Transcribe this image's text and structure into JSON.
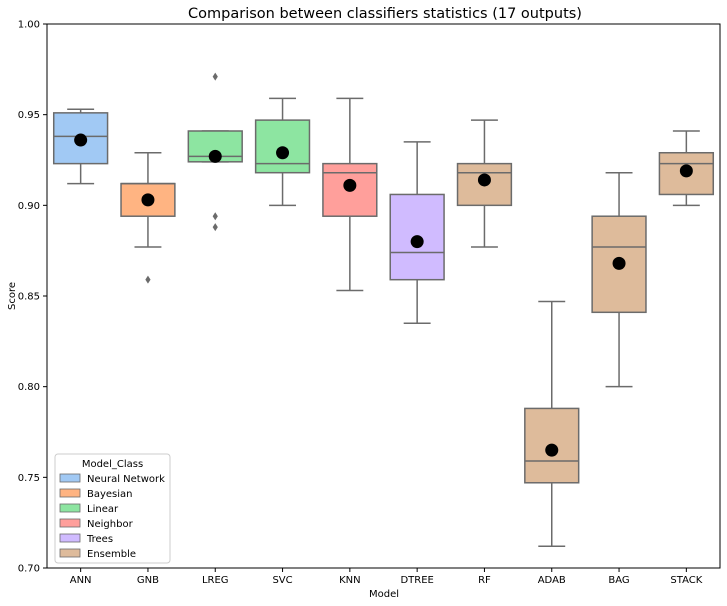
{
  "chart_data": {
    "type": "box",
    "title": "Comparison between classifiers statistics (17 outputs)",
    "xlabel": "Model",
    "ylabel": "Score",
    "ylim": [
      0.7,
      1.0
    ],
    "yticks": [
      "0.70",
      "0.75",
      "0.80",
      "0.85",
      "0.90",
      "0.95",
      "1.00"
    ],
    "categories": [
      "ANN",
      "GNB",
      "LREG",
      "SVC",
      "KNN",
      "DTREE",
      "RF",
      "ADAB",
      "BAG",
      "STACK"
    ],
    "series": [
      {
        "category": "ANN",
        "class": "Neural Network",
        "whisker_low": 0.912,
        "q1": 0.923,
        "median": 0.938,
        "q3": 0.951,
        "whisker_high": 0.953,
        "mean": 0.936,
        "outliers": []
      },
      {
        "category": "GNB",
        "class": "Bayesian",
        "whisker_low": 0.877,
        "q1": 0.894,
        "median": 0.912,
        "q3": 0.912,
        "whisker_high": 0.929,
        "mean": 0.903,
        "outliers": [
          0.859
        ]
      },
      {
        "category": "LREG",
        "class": "Linear",
        "whisker_low": 0.924,
        "q1": 0.924,
        "median": 0.927,
        "q3": 0.941,
        "whisker_high": 0.941,
        "mean": 0.927,
        "outliers": [
          0.971,
          0.894,
          0.888
        ]
      },
      {
        "category": "SVC",
        "class": "Linear",
        "whisker_low": 0.9,
        "q1": 0.918,
        "median": 0.923,
        "q3": 0.947,
        "whisker_high": 0.959,
        "mean": 0.929,
        "outliers": []
      },
      {
        "category": "KNN",
        "class": "Neighbor",
        "whisker_low": 0.853,
        "q1": 0.894,
        "median": 0.918,
        "q3": 0.923,
        "whisker_high": 0.959,
        "mean": 0.911,
        "outliers": []
      },
      {
        "category": "DTREE",
        "class": "Trees",
        "whisker_low": 0.835,
        "q1": 0.859,
        "median": 0.874,
        "q3": 0.906,
        "whisker_high": 0.935,
        "mean": 0.88,
        "outliers": []
      },
      {
        "category": "RF",
        "class": "Ensemble",
        "whisker_low": 0.877,
        "q1": 0.9,
        "median": 0.918,
        "q3": 0.923,
        "whisker_high": 0.947,
        "mean": 0.914,
        "outliers": []
      },
      {
        "category": "ADAB",
        "class": "Ensemble",
        "whisker_low": 0.712,
        "q1": 0.747,
        "median": 0.759,
        "q3": 0.788,
        "whisker_high": 0.847,
        "mean": 0.765,
        "outliers": []
      },
      {
        "category": "BAG",
        "class": "Ensemble",
        "whisker_low": 0.8,
        "q1": 0.841,
        "median": 0.877,
        "q3": 0.894,
        "whisker_high": 0.918,
        "mean": 0.868,
        "outliers": []
      },
      {
        "category": "STACK",
        "class": "Ensemble",
        "whisker_low": 0.9,
        "q1": 0.906,
        "median": 0.923,
        "q3": 0.929,
        "whisker_high": 0.941,
        "mean": 0.919,
        "outliers": []
      }
    ],
    "legend": {
      "title": "Model_Class",
      "placement": "bottom-left",
      "entries": [
        {
          "name": "Neural Network",
          "color": "#a1c9f4"
        },
        {
          "name": "Bayesian",
          "color": "#ffb482"
        },
        {
          "name": "Linear",
          "color": "#8de5a1"
        },
        {
          "name": "Neighbor",
          "color": "#ff9f9b"
        },
        {
          "name": "Trees",
          "color": "#d0bbff"
        },
        {
          "name": "Ensemble",
          "color": "#debb9b"
        }
      ]
    },
    "grid": false,
    "box_edge_color": "#6b6b6b",
    "mean_marker_color": "#000000"
  }
}
